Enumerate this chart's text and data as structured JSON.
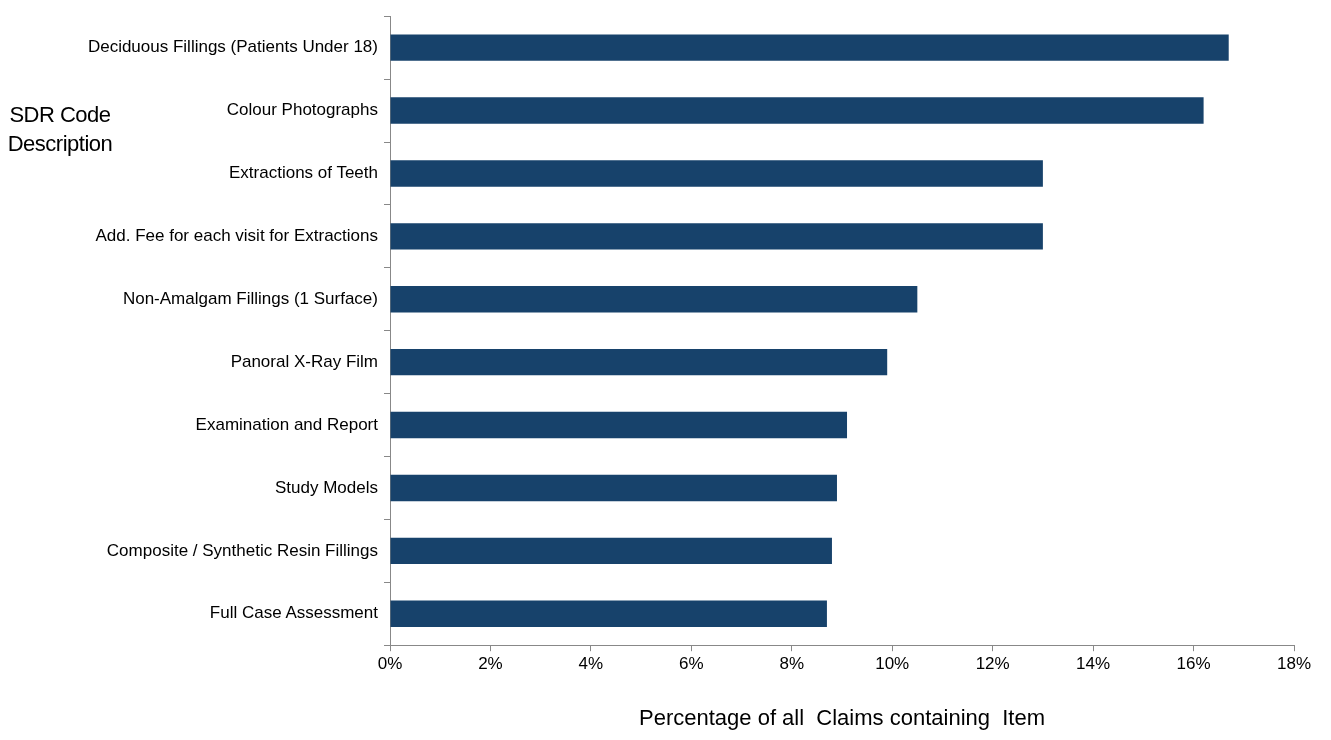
{
  "chart_data": {
    "type": "bar",
    "orientation": "horizontal",
    "ylabel": "SDR Code Description",
    "xlabel": "Percentage of all  Claims containing  Item",
    "categories": [
      "Deciduous Fillings (Patients Under 18)",
      "Colour Photographs",
      "Extractions of Teeth",
      "Add. Fee for each visit for Extractions",
      "Non-Amalgam Fillings (1 Surface)",
      "Panoral X-Ray Film",
      "Examination and Report",
      "Study Models",
      "Composite / Synthetic Resin Fillings",
      "Full Case Assessment"
    ],
    "values": [
      16.7,
      16.2,
      13.0,
      13.0,
      10.5,
      9.9,
      9.1,
      8.9,
      8.8,
      8.7
    ],
    "color": "#17426b",
    "xlim": [
      0,
      18
    ],
    "xticks": [
      {
        "value": 0,
        "label": "0%"
      },
      {
        "value": 2,
        "label": "2%"
      },
      {
        "value": 4,
        "label": "4%"
      },
      {
        "value": 6,
        "label": "6%"
      },
      {
        "value": 8,
        "label": "8%"
      },
      {
        "value": 10,
        "label": "10%"
      },
      {
        "value": 12,
        "label": "12%"
      },
      {
        "value": 14,
        "label": "14%"
      },
      {
        "value": 16,
        "label": "16%"
      },
      {
        "value": 18,
        "label": "18%"
      }
    ],
    "grid": false,
    "legend": false
  }
}
